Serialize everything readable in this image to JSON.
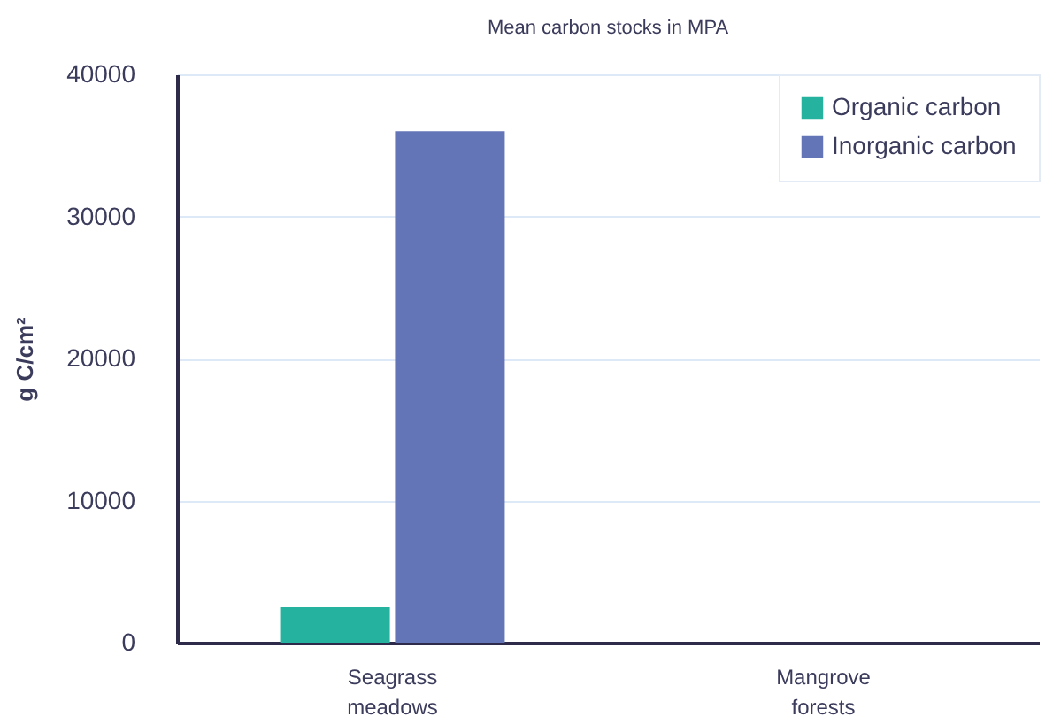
{
  "chart_data": {
    "type": "bar",
    "title": "Mean carbon stocks in MPA",
    "ylabel": "g C/cm²",
    "categories": [
      "Seagrass meadows",
      "Mangrove forests"
    ],
    "series": [
      {
        "name": "Organic carbon",
        "color": "#25b29e",
        "values": [
          2500,
          null
        ]
      },
      {
        "name": "Inorganic carbon",
        "color": "#6375b6",
        "values": [
          36000,
          null
        ]
      }
    ],
    "ylim": [
      0,
      40000
    ],
    "yticks": [
      0,
      10000,
      20000,
      30000,
      40000
    ],
    "grid": "y",
    "legend": "top right"
  }
}
